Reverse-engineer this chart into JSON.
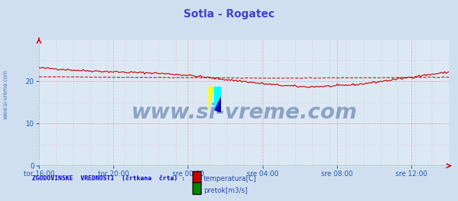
{
  "title": "Sotla - Rogatec",
  "title_color": "#4444cc",
  "title_fontsize": 11,
  "bg_color": "#d0dff0",
  "plot_bg_color": "#dce9f5",
  "x_labels": [
    "tor 16:00",
    "tor 20:00",
    "sre 00:00",
    "sre 04:00",
    "sre 08:00",
    "sre 12:00"
  ],
  "x_ticks_norm": [
    0.0,
    0.1818,
    0.3636,
    0.5455,
    0.7273,
    0.9091
  ],
  "ylim": [
    0,
    30
  ],
  "yticks": [
    0,
    10,
    20
  ],
  "ylabel_color": "#2255aa",
  "grid_color": "#ddaaaa",
  "temp_color": "#cc0000",
  "pretok_color": "#008800",
  "watermark_text": "www.si-vreme.com",
  "watermark_color": "#1a3a7a",
  "watermark_alpha": 0.4,
  "watermark_fontsize": 22,
  "legend_label": "ZGODOVINSKE  VREDNOSTI  (črtkana  črta) :",
  "legend_label_color": "#0000cc",
  "legend_temp": "temperatura[C]",
  "legend_pretok": "pretok[m3/s]",
  "legend_color": "#2244aa",
  "sidebar_text": "www.si-vreme.com",
  "sidebar_color": "#2255aa"
}
